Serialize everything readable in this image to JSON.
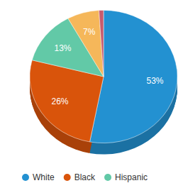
{
  "chart_data": {
    "type": "pie",
    "categories": [
      "White",
      "Black",
      "Hispanic",
      null,
      null
    ],
    "values": [
      53,
      26,
      13,
      7,
      1
    ],
    "value_labels": [
      "53%",
      "26%",
      "13%",
      "7%",
      null
    ],
    "colors": [
      "#2391d1",
      "#d9540b",
      "#62c9a7",
      "#f5b75a",
      "#c85a6c"
    ],
    "data_labels": true,
    "legend": "bottom"
  }
}
